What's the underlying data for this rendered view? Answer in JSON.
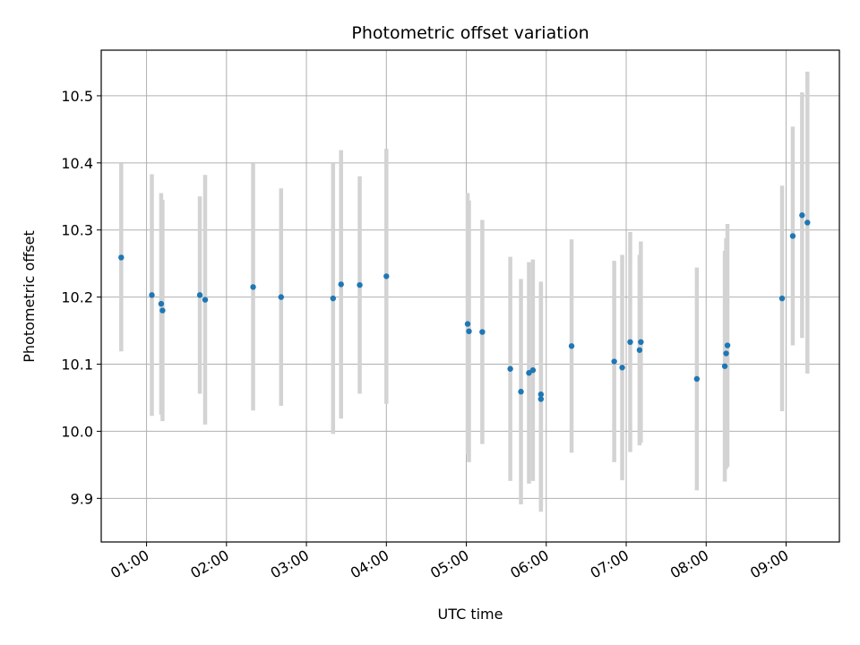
{
  "chart_data": {
    "type": "scatter",
    "title": "Photometric offset variation",
    "xlabel": "UTC time",
    "ylabel": "Photometric offset",
    "x_axis_type": "time",
    "xlim": [
      "00:26",
      "09:40"
    ],
    "ylim": [
      9.835,
      10.568
    ],
    "x_ticks": [
      "01:00",
      "02:00",
      "03:00",
      "04:00",
      "05:00",
      "06:00",
      "07:00",
      "08:00",
      "09:00"
    ],
    "y_ticks": [
      9.9,
      10.0,
      10.1,
      10.2,
      10.3,
      10.4,
      10.5
    ],
    "grid": true,
    "legend": "none",
    "colors": {
      "marker": "#1f77b4",
      "error_bar": "#d3d3d3",
      "grid": "#b0b0b0"
    },
    "series": [
      {
        "points": [
          {
            "time": "00:41",
            "y": 10.259,
            "err": 0.14
          },
          {
            "time": "01:04",
            "y": 10.203,
            "err": 0.18
          },
          {
            "time": "01:11",
            "y": 10.19,
            "err": 0.165
          },
          {
            "time": "01:12",
            "y": 10.18,
            "err": 0.165
          },
          {
            "time": "01:40",
            "y": 10.203,
            "err": 0.147
          },
          {
            "time": "01:44",
            "y": 10.196,
            "err": 0.186
          },
          {
            "time": "02:20",
            "y": 10.215,
            "err": 0.184
          },
          {
            "time": "02:41",
            "y": 10.2,
            "err": 0.162
          },
          {
            "time": "03:20",
            "y": 10.198,
            "err": 0.202
          },
          {
            "time": "03:26",
            "y": 10.219,
            "err": 0.2
          },
          {
            "time": "03:40",
            "y": 10.218,
            "err": 0.162
          },
          {
            "time": "04:00",
            "y": 10.231,
            "err": 0.19
          },
          {
            "time": "05:01",
            "y": 10.16,
            "err": 0.195
          },
          {
            "time": "05:02",
            "y": 10.149,
            "err": 0.195
          },
          {
            "time": "05:12",
            "y": 10.148,
            "err": 0.167
          },
          {
            "time": "05:33",
            "y": 10.093,
            "err": 0.167
          },
          {
            "time": "05:41",
            "y": 10.059,
            "err": 0.168
          },
          {
            "time": "05:47",
            "y": 10.087,
            "err": 0.165
          },
          {
            "time": "05:50",
            "y": 10.091,
            "err": 0.165
          },
          {
            "time": "05:56",
            "y": 10.055,
            "err": 0.168
          },
          {
            "time": "05:56",
            "y": 10.048,
            "err": 0.168
          },
          {
            "time": "06:19",
            "y": 10.127,
            "err": 0.159
          },
          {
            "time": "06:51",
            "y": 10.104,
            "err": 0.15
          },
          {
            "time": "06:57",
            "y": 10.095,
            "err": 0.168
          },
          {
            "time": "07:03",
            "y": 10.133,
            "err": 0.164
          },
          {
            "time": "07:10",
            "y": 10.121,
            "err": 0.142
          },
          {
            "time": "07:11",
            "y": 10.133,
            "err": 0.15
          },
          {
            "time": "07:53",
            "y": 10.078,
            "err": 0.166
          },
          {
            "time": "08:14",
            "y": 10.097,
            "err": 0.172
          },
          {
            "time": "08:15",
            "y": 10.116,
            "err": 0.172
          },
          {
            "time": "08:16",
            "y": 10.128,
            "err": 0.181
          },
          {
            "time": "08:57",
            "y": 10.198,
            "err": 0.168
          },
          {
            "time": "09:05",
            "y": 10.291,
            "err": 0.163
          },
          {
            "time": "09:12",
            "y": 10.322,
            "err": 0.183
          },
          {
            "time": "09:16",
            "y": 10.311,
            "err": 0.225
          }
        ]
      }
    ]
  }
}
